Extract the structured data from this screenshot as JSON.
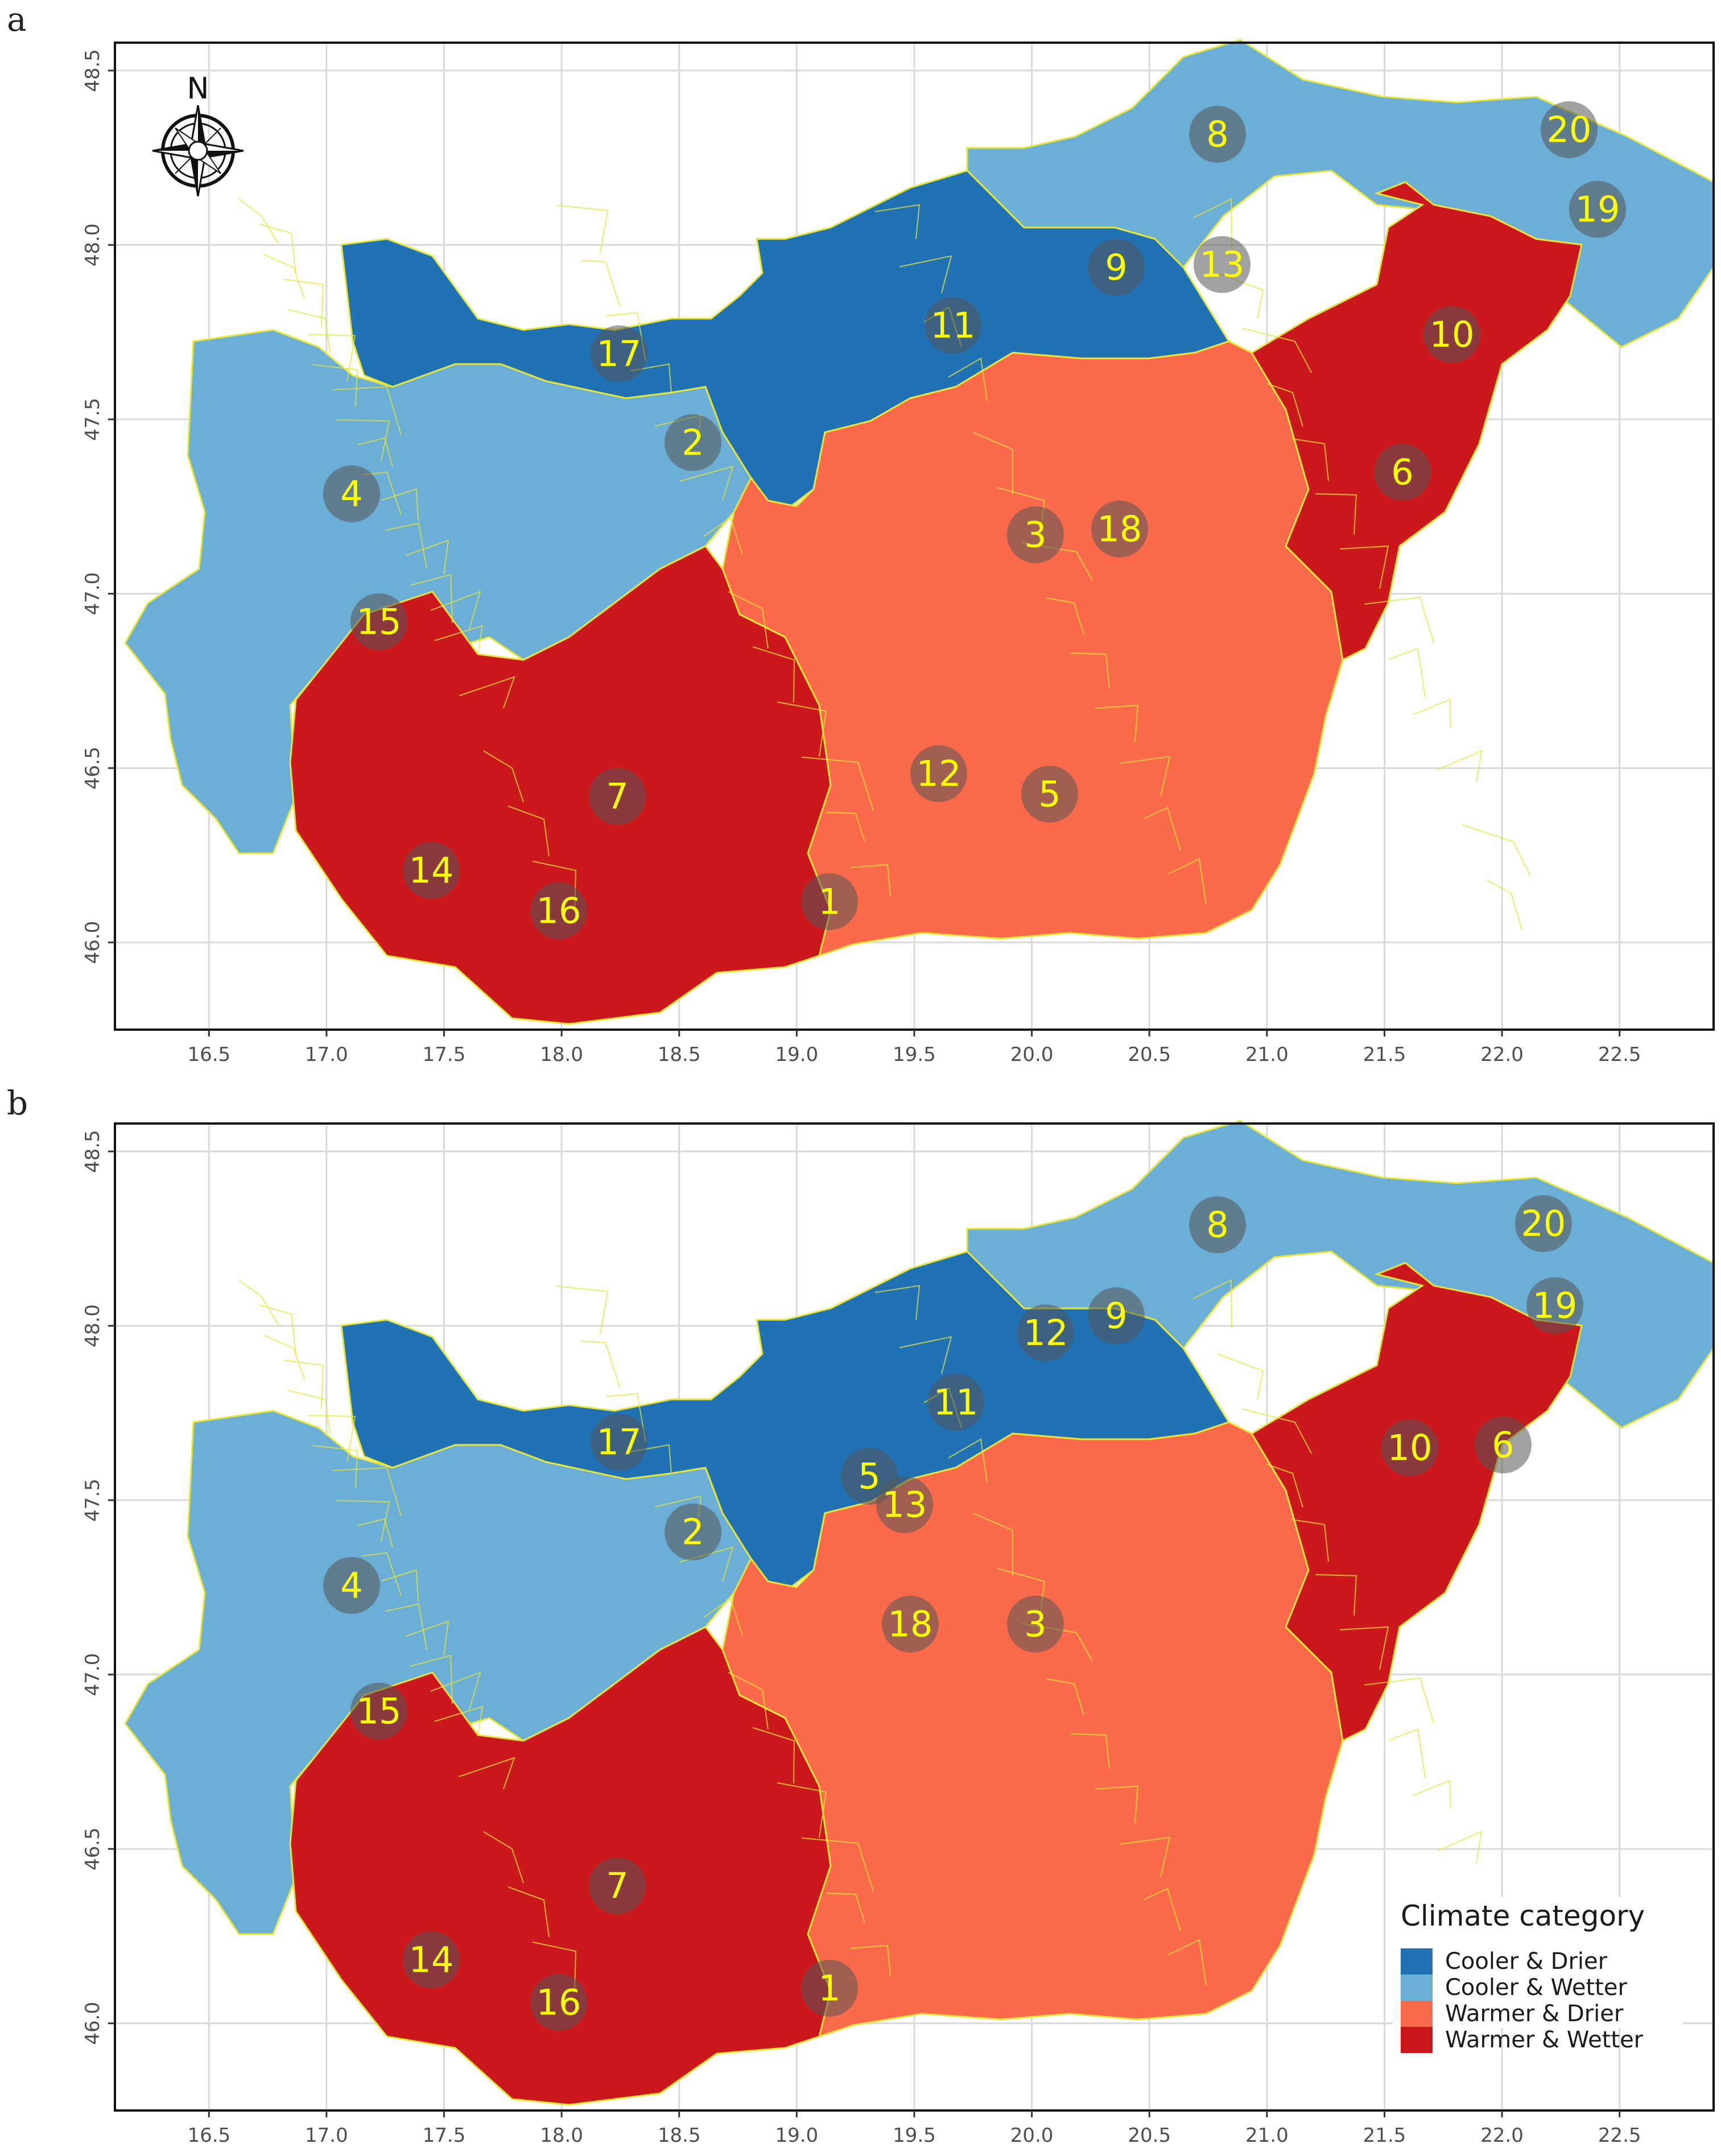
{
  "panels": [
    {
      "letter": "a",
      "markers": [
        {
          "id": "1",
          "category": "warmer_drier"
        },
        {
          "id": "2",
          "category": "cooler_wetter"
        },
        {
          "id": "3",
          "category": "warmer_drier"
        },
        {
          "id": "4",
          "category": "cooler_wetter"
        },
        {
          "id": "5",
          "category": "warmer_drier"
        },
        {
          "id": "6",
          "category": "warmer_wetter"
        },
        {
          "id": "7",
          "category": "warmer_wetter"
        },
        {
          "id": "8",
          "category": "cooler_wetter"
        },
        {
          "id": "9",
          "category": "cooler_drier"
        },
        {
          "id": "10",
          "category": "warmer_wetter"
        },
        {
          "id": "11",
          "category": "cooler_drier"
        },
        {
          "id": "12",
          "category": "warmer_drier"
        },
        {
          "id": "13",
          "category": "cooler_wetter"
        },
        {
          "id": "14",
          "category": "warmer_wetter"
        },
        {
          "id": "15",
          "category": "cooler_wetter"
        },
        {
          "id": "16",
          "category": "warmer_wetter"
        },
        {
          "id": "17",
          "category": "cooler_drier"
        },
        {
          "id": "18",
          "category": "warmer_drier"
        },
        {
          "id": "19",
          "category": "cooler_wetter"
        },
        {
          "id": "20",
          "category": "cooler_wetter"
        }
      ]
    },
    {
      "letter": "b",
      "markers": [
        {
          "id": "1",
          "category": "warmer_drier"
        },
        {
          "id": "2",
          "category": "cooler_wetter"
        },
        {
          "id": "3",
          "category": "warmer_drier"
        },
        {
          "id": "4",
          "category": "cooler_wetter"
        },
        {
          "id": "5",
          "category": "cooler_drier"
        },
        {
          "id": "6",
          "category": "warmer_wetter"
        },
        {
          "id": "7",
          "category": "warmer_wetter"
        },
        {
          "id": "8",
          "category": "cooler_wetter"
        },
        {
          "id": "9",
          "category": "cooler_wetter"
        },
        {
          "id": "10",
          "category": "warmer_wetter"
        },
        {
          "id": "11",
          "category": "cooler_drier"
        },
        {
          "id": "12",
          "category": "cooler_wetter"
        },
        {
          "id": "13",
          "category": "warmer_drier"
        },
        {
          "id": "14",
          "category": "warmer_wetter"
        },
        {
          "id": "15",
          "category": "cooler_wetter"
        },
        {
          "id": "16",
          "category": "warmer_wetter"
        },
        {
          "id": "17",
          "category": "cooler_drier"
        },
        {
          "id": "18",
          "category": "warmer_drier"
        },
        {
          "id": "19",
          "category": "cooler_wetter"
        },
        {
          "id": "20",
          "category": "cooler_wetter"
        }
      ]
    }
  ],
  "axes": {
    "x_ticks": [
      "16.5",
      "17.0",
      "17.5",
      "18.0",
      "18.5",
      "19.0",
      "19.5",
      "20.0",
      "20.5",
      "21.0",
      "21.5",
      "22.0",
      "22.5"
    ],
    "y_ticks": [
      "46.0",
      "46.5",
      "47.0",
      "47.5",
      "48.0",
      "48.5"
    ],
    "x_range": [
      16.1,
      22.9
    ],
    "y_range": [
      45.75,
      48.58
    ]
  },
  "compass": {
    "label": "N",
    "icon": "compass-rose-icon"
  },
  "legend": {
    "title": "Climate category",
    "items": [
      {
        "key": "cooler_drier",
        "label": "Cooler & Drier",
        "color": "#2171b5"
      },
      {
        "key": "cooler_wetter",
        "label": "Cooler & Wetter",
        "color": "#6baed6"
      },
      {
        "key": "warmer_drier",
        "label": "Warmer & Drier",
        "color": "#fb6a4a"
      },
      {
        "key": "warmer_wetter",
        "label": "Warmer & Wetter",
        "color": "#cb181d"
      }
    ]
  },
  "colors": {
    "district_border": "#e6e639",
    "grid": "#d9d9d9",
    "marker_fill": "#555555",
    "marker_text": "#ffff00"
  }
}
